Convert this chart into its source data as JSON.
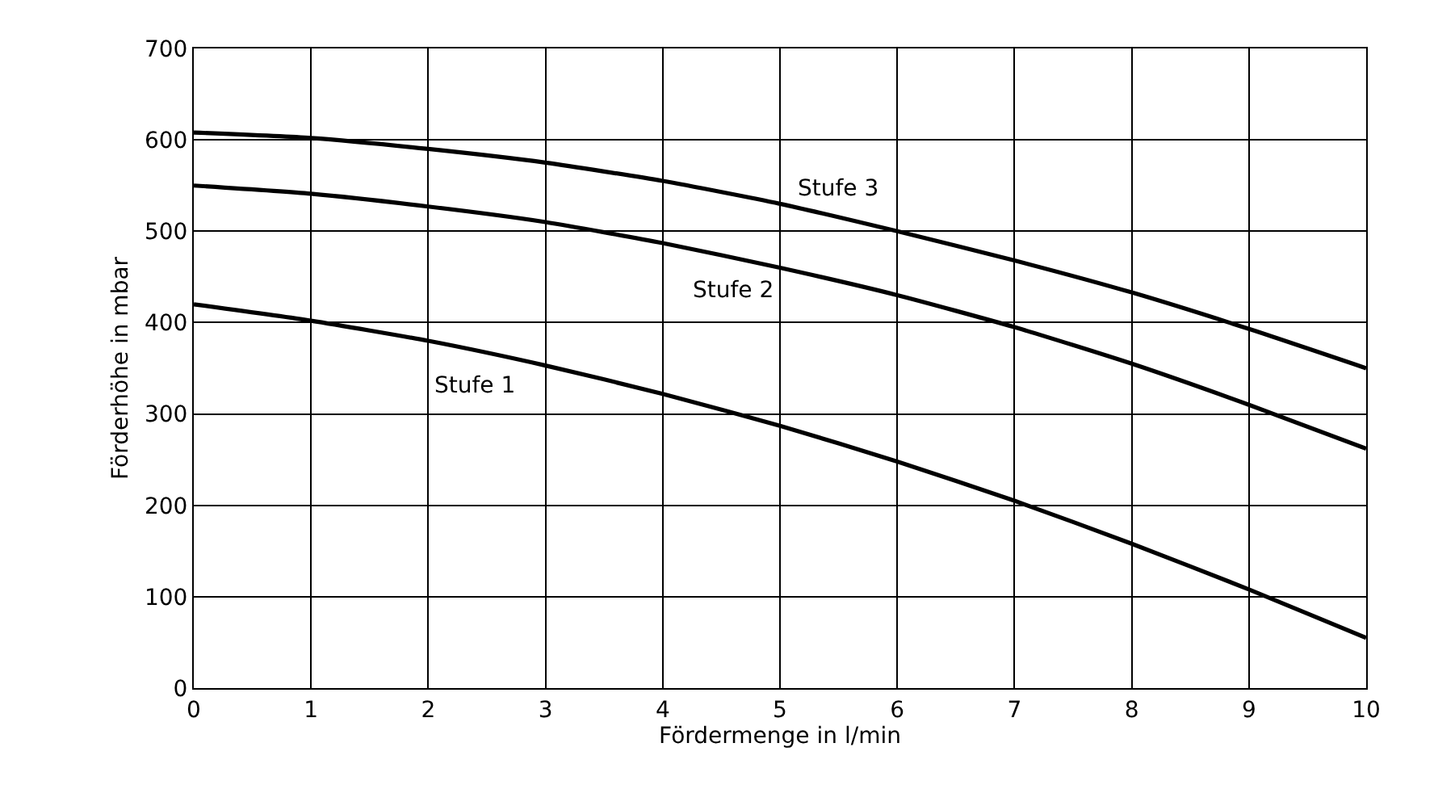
{
  "chart_data": {
    "type": "line",
    "xlabel": "Fördermenge in l/min",
    "ylabel": "Förderhöhe in mbar",
    "x": [
      0,
      1,
      2,
      3,
      4,
      5,
      6,
      7,
      8,
      9,
      10
    ],
    "series": [
      {
        "name": "Stufe 3",
        "color": "#000000",
        "values": [
          608,
          602,
          590,
          575,
          555,
          530,
          500,
          468,
          433,
          393,
          350
        ]
      },
      {
        "name": "Stufe 2",
        "color": "#000000",
        "values": [
          550,
          541,
          527,
          510,
          487,
          460,
          430,
          395,
          355,
          310,
          262
        ]
      },
      {
        "name": "Stufe 1",
        "color": "#000000",
        "values": [
          420,
          402,
          380,
          353,
          322,
          287,
          248,
          205,
          158,
          108,
          55
        ]
      }
    ],
    "xlim": [
      0,
      10
    ],
    "xticks": [
      0,
      1,
      2,
      3,
      4,
      5,
      6,
      7,
      8,
      9,
      10
    ],
    "ylim": [
      0,
      700
    ],
    "yticks": [
      0,
      100,
      200,
      300,
      400,
      500,
      600,
      700
    ],
    "grid": true,
    "legend": false,
    "marker": "none",
    "line_style": "solid"
  }
}
